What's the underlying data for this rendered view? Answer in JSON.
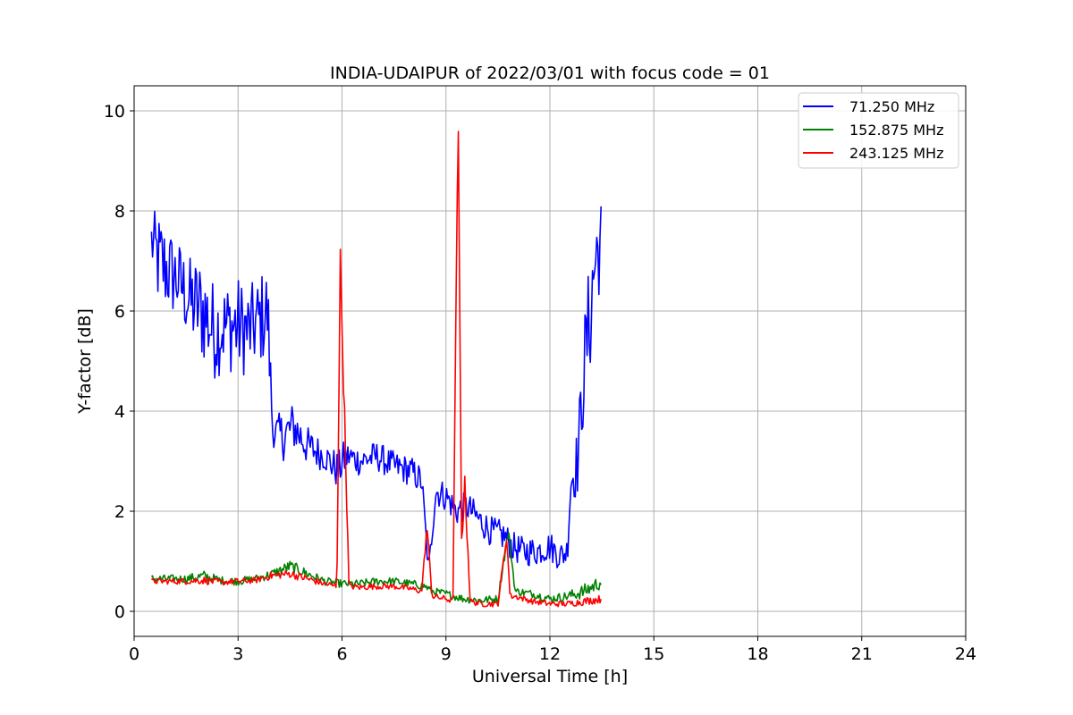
{
  "chart_data": {
    "type": "line",
    "title": "INDIA-UDAIPUR of 2022/03/01 with focus code = 01",
    "xlabel": "Universal Time [h]",
    "ylabel": "Y-factor [dB]",
    "xlim": [
      0,
      24
    ],
    "ylim": [
      -0.5,
      10.5
    ],
    "xticks": [
      "0",
      "3",
      "6",
      "9",
      "12",
      "15",
      "18",
      "21",
      "24"
    ],
    "yticks": [
      "0",
      "2",
      "4",
      "6",
      "8",
      "10"
    ],
    "grid": true,
    "legend_position": "top-right",
    "series": [
      {
        "name": " 71.250 MHz",
        "color": "#0000ff",
        "x": [
          0.5,
          0.7,
          1.0,
          1.3,
          1.6,
          2.0,
          2.3,
          2.6,
          3.0,
          3.3,
          3.6,
          3.85,
          4.0,
          4.3,
          4.6,
          5.0,
          5.5,
          5.9,
          6.0,
          6.2,
          6.5,
          7.0,
          7.5,
          8.0,
          8.3,
          8.5,
          8.7,
          9.0,
          9.3,
          9.6,
          10.0,
          10.3,
          10.7,
          10.9,
          11.2,
          11.6,
          12.0,
          12.3,
          12.5,
          12.6,
          12.8,
          13.0,
          13.2,
          13.3,
          13.5
        ],
        "y": [
          7.4,
          7.0,
          6.8,
          6.6,
          6.2,
          6.0,
          5.6,
          5.7,
          5.7,
          5.6,
          5.8,
          6.0,
          3.6,
          3.5,
          3.7,
          3.3,
          3.1,
          2.8,
          3.0,
          3.1,
          3.0,
          3.1,
          2.9,
          2.8,
          2.6,
          0.8,
          2.4,
          2.3,
          2.0,
          2.1,
          1.8,
          1.6,
          1.5,
          1.3,
          1.2,
          1.2,
          1.3,
          1.1,
          1.2,
          2.6,
          3.0,
          5.0,
          6.2,
          7.0,
          7.5
        ],
        "amplitude": [
          0.6,
          1.0,
          0.9,
          0.8,
          0.9,
          1.1,
          1.0,
          0.9,
          1.0,
          0.9,
          0.9,
          1.0,
          0.3,
          0.5,
          0.5,
          0.4,
          0.3,
          0.4,
          0.4,
          0.3,
          0.3,
          0.3,
          0.3,
          0.3,
          0.3,
          0.2,
          0.3,
          0.3,
          0.3,
          0.3,
          0.3,
          0.3,
          0.3,
          0.3,
          0.3,
          0.3,
          0.3,
          0.3,
          0.3,
          0.5,
          0.7,
          1.0,
          1.3,
          1.3,
          0.8
        ]
      },
      {
        "name": "152.875 MHz",
        "color": "#008000",
        "x": [
          0.5,
          1.0,
          1.5,
          2.0,
          2.5,
          3.0,
          3.5,
          4.0,
          4.5,
          5.0,
          5.5,
          6.0,
          6.5,
          7.0,
          7.5,
          8.0,
          8.4,
          8.6,
          9.0,
          9.5,
          10.0,
          10.5,
          10.8,
          11.0,
          11.5,
          12.0,
          12.5,
          13.0,
          13.5
        ],
        "y": [
          0.65,
          0.65,
          0.65,
          0.7,
          0.62,
          0.6,
          0.65,
          0.75,
          0.9,
          0.75,
          0.6,
          0.55,
          0.55,
          0.6,
          0.6,
          0.55,
          0.5,
          0.4,
          0.35,
          0.25,
          0.22,
          0.25,
          1.6,
          0.4,
          0.35,
          0.25,
          0.3,
          0.4,
          0.6
        ],
        "amplitude": [
          0.08,
          0.08,
          0.08,
          0.12,
          0.08,
          0.08,
          0.08,
          0.1,
          0.12,
          0.1,
          0.08,
          0.08,
          0.08,
          0.08,
          0.08,
          0.08,
          0.08,
          0.08,
          0.08,
          0.08,
          0.08,
          0.08,
          0.1,
          0.08,
          0.08,
          0.08,
          0.1,
          0.15,
          0.15
        ]
      },
      {
        "name": "243.125 MHz",
        "color": "#ff0000",
        "x": [
          0.5,
          1.0,
          1.5,
          2.0,
          2.5,
          3.0,
          3.5,
          4.0,
          4.5,
          5.0,
          5.5,
          5.85,
          5.95,
          6.05,
          6.2,
          6.5,
          7.0,
          7.5,
          8.0,
          8.3,
          8.45,
          8.6,
          9.0,
          9.2,
          9.35,
          9.45,
          9.55,
          9.7,
          10.0,
          10.5,
          10.75,
          10.85,
          11.0,
          11.5,
          12.0,
          12.5,
          13.0,
          13.5
        ],
        "y": [
          0.6,
          0.6,
          0.6,
          0.62,
          0.58,
          0.6,
          0.62,
          0.72,
          0.75,
          0.65,
          0.55,
          0.5,
          7.0,
          4.5,
          0.5,
          0.48,
          0.5,
          0.5,
          0.45,
          0.4,
          1.7,
          0.3,
          0.25,
          0.2,
          10.0,
          1.5,
          2.5,
          0.2,
          0.15,
          0.15,
          1.5,
          0.3,
          0.3,
          0.2,
          0.15,
          0.15,
          0.2,
          0.25
        ],
        "amplitude": [
          0.06,
          0.06,
          0.06,
          0.08,
          0.06,
          0.06,
          0.06,
          0.08,
          0.08,
          0.08,
          0.06,
          0.06,
          0.3,
          0.3,
          0.06,
          0.06,
          0.06,
          0.06,
          0.06,
          0.06,
          0.1,
          0.06,
          0.06,
          0.06,
          0.2,
          0.2,
          0.3,
          0.06,
          0.06,
          0.06,
          0.1,
          0.06,
          0.06,
          0.06,
          0.06,
          0.06,
          0.08,
          0.08
        ]
      }
    ]
  }
}
